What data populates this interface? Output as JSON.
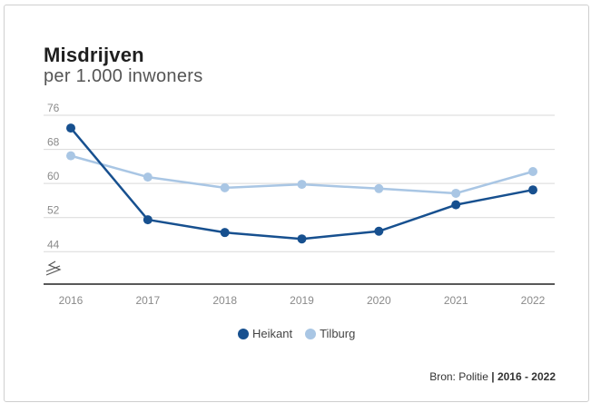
{
  "chart_data": {
    "type": "line",
    "title": "Misdrijven",
    "subtitle": "per 1.000 inwoners",
    "categories": [
      "2016",
      "2017",
      "2018",
      "2019",
      "2020",
      "2021",
      "2022"
    ],
    "series": [
      {
        "name": "Heikant",
        "color": "#17508f",
        "values": [
          73,
          51.5,
          48.5,
          47,
          48.8,
          55,
          58.5
        ]
      },
      {
        "name": "Tilburg",
        "color": "#a9c6e4",
        "values": [
          66.5,
          61.5,
          59,
          59.8,
          58.8,
          57.7,
          62.8
        ]
      }
    ],
    "y_ticks": [
      "76",
      "68",
      "60",
      "52",
      "44"
    ],
    "ylim": [
      36.4,
      76
    ],
    "axis_break": true,
    "grid": true,
    "legend": "bottom-center",
    "source": {
      "prefix": "Bron: Politie",
      "separator": "|",
      "years": "2016 - 2022"
    }
  }
}
